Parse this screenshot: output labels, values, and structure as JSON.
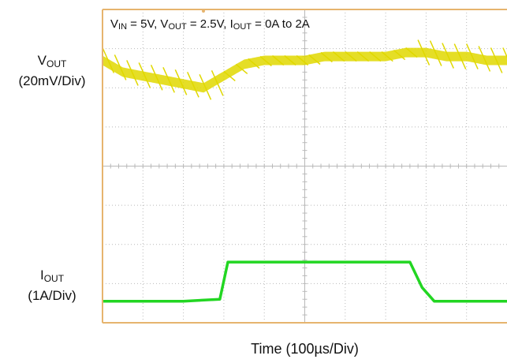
{
  "title": {
    "v_sym": "V",
    "v_sub": "IN",
    "v_val": " = 5V, ",
    "vo_sym": "V",
    "vo_sub": "OUT",
    "vo_val": " = 2.5V, ",
    "io_sym": "I",
    "io_sub": "OUT",
    "io_val": " = 0A to 2A"
  },
  "labels": {
    "vout_sym": "V",
    "vout_sub": "OUT",
    "vout_scale": "(20mV/Div)",
    "iout_sym": "I",
    "iout_sub": "OUT",
    "iout_scale": "(1A/Div)",
    "time": "Time (100µs/Div)"
  },
  "colors": {
    "vout": "#e0d800",
    "iout": "#22d622",
    "grid": "#b9b9b9",
    "frame": "#e6b46e",
    "background": "#ffffff"
  },
  "chart_data": {
    "type": "line",
    "grid": true,
    "divisions": {
      "x": 10,
      "y": 8
    },
    "xlabel": "Time (100µs/Div)",
    "series": [
      {
        "name": "VOUT",
        "unit": "mV per division 20",
        "x_div": [
          0,
          0.5,
          1,
          1.5,
          2,
          2.5,
          3,
          3.5,
          4,
          4.5,
          5,
          5.5,
          6,
          6.5,
          7,
          7.5,
          8,
          8.5,
          9,
          9.5,
          10
        ],
        "y_div": [
          6.7,
          6.4,
          6.3,
          6.2,
          6.1,
          6.0,
          6.3,
          6.6,
          6.7,
          6.7,
          6.7,
          6.8,
          6.8,
          6.8,
          6.8,
          6.9,
          6.9,
          6.8,
          6.8,
          6.7,
          6.7
        ]
      },
      {
        "name": "IOUT",
        "unit": "A per division 1",
        "x_div": [
          0,
          1,
          2,
          2.9,
          3.1,
          4,
          5,
          6,
          7,
          7.6,
          7.9,
          8.2,
          9,
          10
        ],
        "y_div": [
          0.55,
          0.55,
          0.55,
          0.6,
          1.55,
          1.55,
          1.55,
          1.55,
          1.55,
          1.55,
          0.9,
          0.55,
          0.55,
          0.55
        ]
      }
    ]
  }
}
